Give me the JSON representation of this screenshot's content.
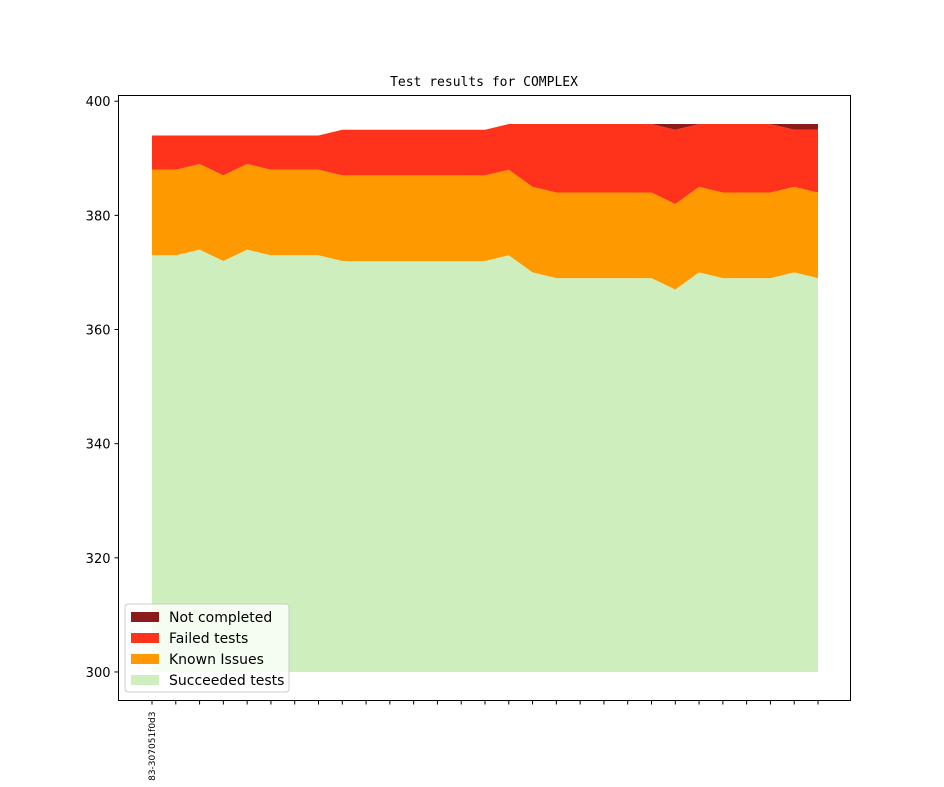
{
  "chart_data": {
    "type": "area",
    "title": "Test results for COMPLEX",
    "xlabel": "",
    "ylabel": "",
    "ylim": [
      295,
      401
    ],
    "baseline": 300,
    "yticks": [
      300,
      320,
      340,
      360,
      380,
      400
    ],
    "n_points": 29,
    "xtick_labels": [
      "83-307051f0d3"
    ],
    "stack_order": [
      "Succeeded tests",
      "Known Issues",
      "Failed tests",
      "Not completed"
    ],
    "series": [
      {
        "name": "Succeeded tests",
        "color": "#ceeebe",
        "values": [
          373,
          373,
          374,
          372,
          374,
          373,
          373,
          373,
          372,
          372,
          372,
          372,
          372,
          372,
          372,
          373,
          370,
          369,
          369,
          369,
          369,
          369,
          367,
          370,
          369,
          369,
          369,
          370,
          369
        ]
      },
      {
        "name": "Known Issues",
        "color": "#ff9900",
        "values": [
          15,
          15,
          15,
          15,
          15,
          15,
          15,
          15,
          15,
          15,
          15,
          15,
          15,
          15,
          15,
          15,
          15,
          15,
          15,
          15,
          15,
          15,
          15,
          15,
          15,
          15,
          15,
          15,
          15
        ]
      },
      {
        "name": "Failed tests",
        "color": "#ff331c",
        "values": [
          6,
          6,
          5,
          7,
          5,
          6,
          6,
          6,
          8,
          8,
          8,
          8,
          8,
          8,
          8,
          8,
          11,
          12,
          12,
          12,
          12,
          12,
          13,
          11,
          12,
          12,
          12,
          10,
          11
        ]
      },
      {
        "name": "Not completed",
        "color": "#8b1a1a",
        "values": [
          0,
          0,
          0,
          0,
          0,
          0,
          0,
          0,
          0,
          0,
          0,
          0,
          0,
          0,
          0,
          0,
          0,
          0,
          0,
          0,
          0,
          0,
          1,
          0,
          0,
          0,
          0,
          1,
          1
        ]
      }
    ],
    "legend_entries": [
      "Not completed",
      "Failed tests",
      "Known Issues",
      "Succeeded tests"
    ],
    "legend_location": "lower-left",
    "grid": false
  }
}
